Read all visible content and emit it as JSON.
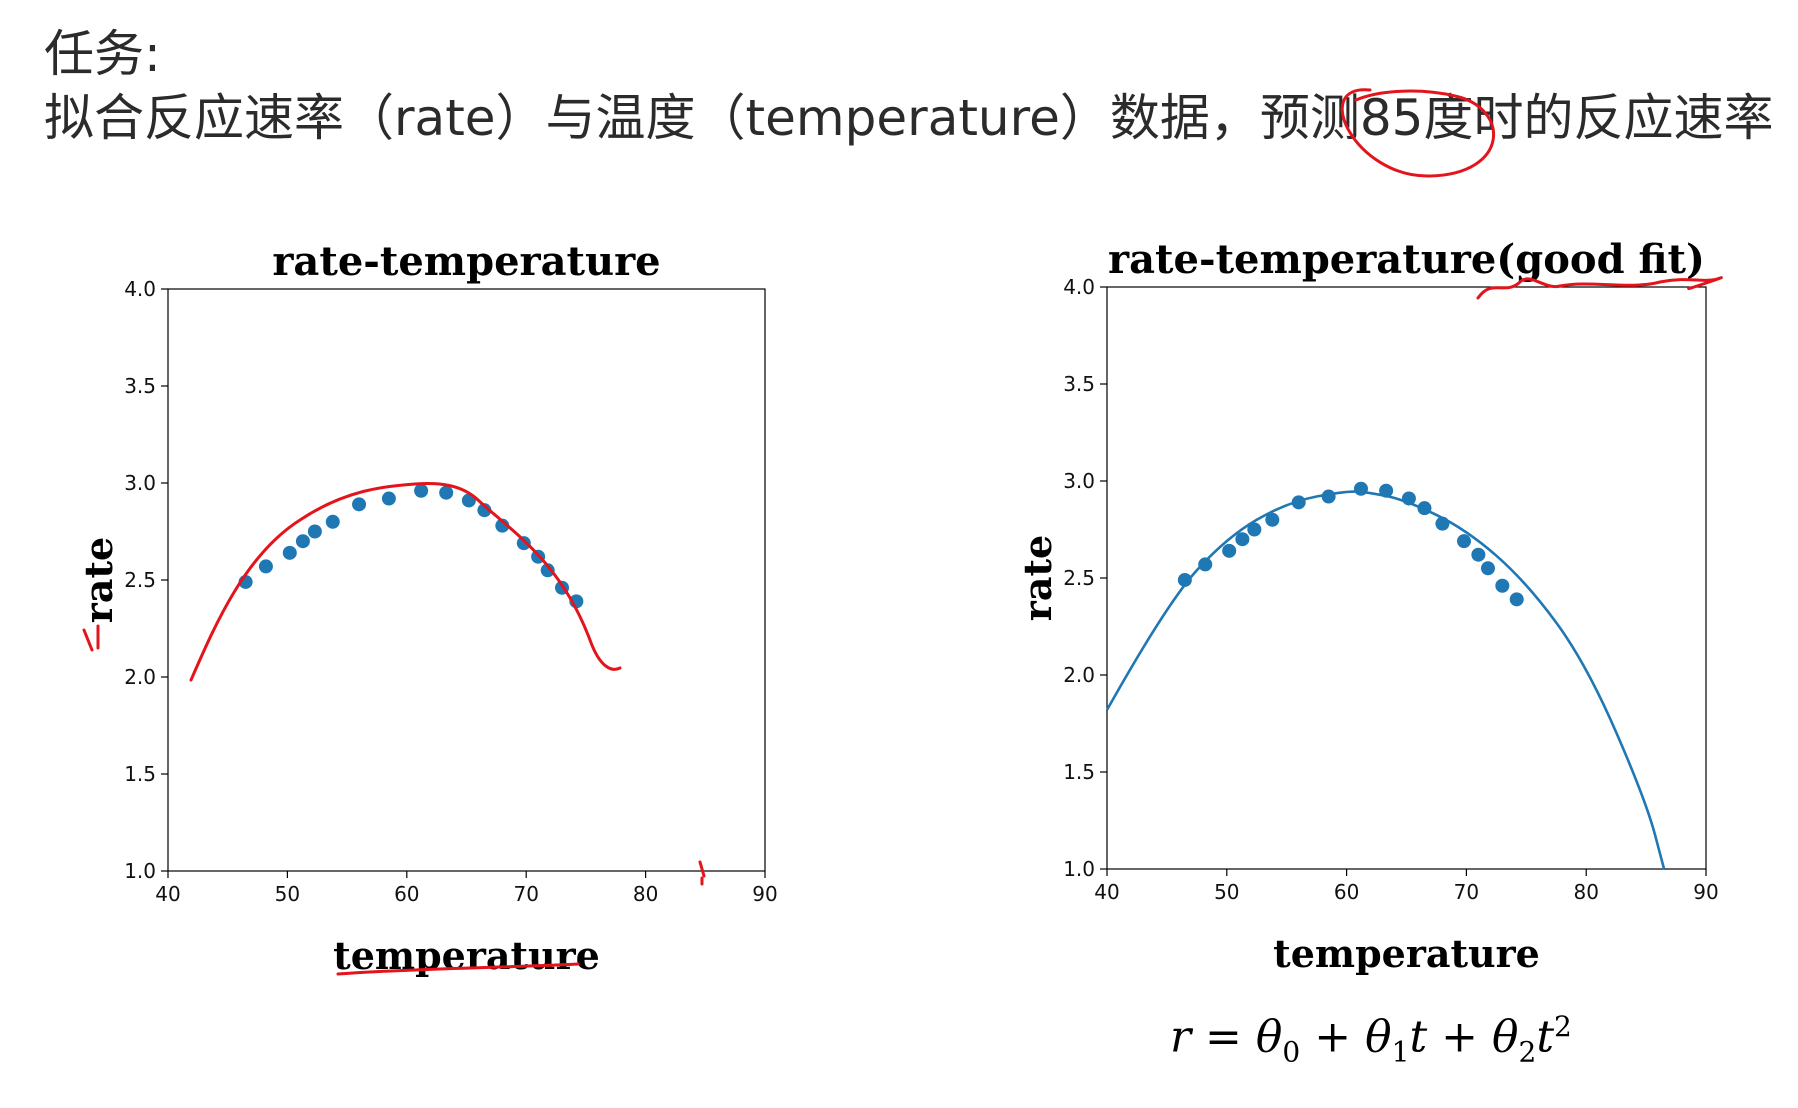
{
  "task": {
    "label": "任务:",
    "text": "拟合反应速率（rate）与温度（temperature）数据，预测85度时的反应速率"
  },
  "formula": {
    "lhs": "r",
    "eq": "=",
    "t0": "θ",
    "s0": "0",
    "p1": "+",
    "t1": "θ",
    "s1": "1",
    "v1": "t",
    "p2": "+",
    "t2": "θ",
    "s2": "2",
    "v2": "t",
    "exp": "2"
  },
  "colors": {
    "points": "#1f77b4",
    "fit_line": "#1f77b4",
    "annotation": "#e3141b"
  },
  "chart_data": [
    {
      "type": "scatter",
      "title": "rate-temperature",
      "xlabel": "temperature",
      "ylabel": "rate",
      "xlim": [
        40,
        90
      ],
      "ylim": [
        1.0,
        4.0
      ],
      "xticks": [
        "40",
        "50",
        "60",
        "70",
        "80",
        "90"
      ],
      "yticks": [
        "1.0",
        "1.5",
        "2.0",
        "2.5",
        "3.0",
        "3.5",
        "4.0"
      ],
      "x": [
        46.5,
        48.2,
        50.2,
        51.3,
        52.3,
        53.8,
        56.0,
        58.5,
        61.2,
        63.3,
        65.2,
        66.5,
        68.0,
        69.8,
        71.0,
        71.8,
        73.0,
        74.2
      ],
      "y": [
        2.49,
        2.57,
        2.64,
        2.7,
        2.75,
        2.8,
        2.89,
        2.92,
        2.96,
        2.95,
        2.91,
        2.86,
        2.78,
        2.69,
        2.62,
        2.55,
        2.46,
        2.39
      ],
      "grid": false
    },
    {
      "type": "scatter",
      "title": "rate-temperature(good fit)",
      "xlabel": "temperature",
      "ylabel": "rate",
      "xlim": [
        40,
        90
      ],
      "ylim": [
        1.0,
        4.0
      ],
      "xticks": [
        "40",
        "50",
        "60",
        "70",
        "80",
        "90"
      ],
      "yticks": [
        "1.0",
        "1.5",
        "2.0",
        "2.5",
        "3.0",
        "3.5",
        "4.0"
      ],
      "x": [
        46.5,
        48.2,
        50.2,
        51.3,
        52.3,
        53.8,
        56.0,
        58.5,
        61.2,
        63.3,
        65.2,
        66.5,
        68.0,
        69.8,
        71.0,
        71.8,
        73.0,
        74.2
      ],
      "y": [
        2.49,
        2.57,
        2.64,
        2.7,
        2.75,
        2.8,
        2.89,
        2.92,
        2.96,
        2.95,
        2.91,
        2.86,
        2.78,
        2.69,
        2.62,
        2.55,
        2.46,
        2.39
      ],
      "fit": {
        "type": "line",
        "model": "quadratic",
        "x": [
          40,
          45,
          50,
          55,
          60,
          62,
          65,
          70,
          75,
          80,
          85,
          86.5
        ],
        "y": [
          1.82,
          2.37,
          2.71,
          2.89,
          2.95,
          2.94,
          2.9,
          2.75,
          2.48,
          2.06,
          1.35,
          1.0
        ]
      },
      "grid": false
    }
  ]
}
